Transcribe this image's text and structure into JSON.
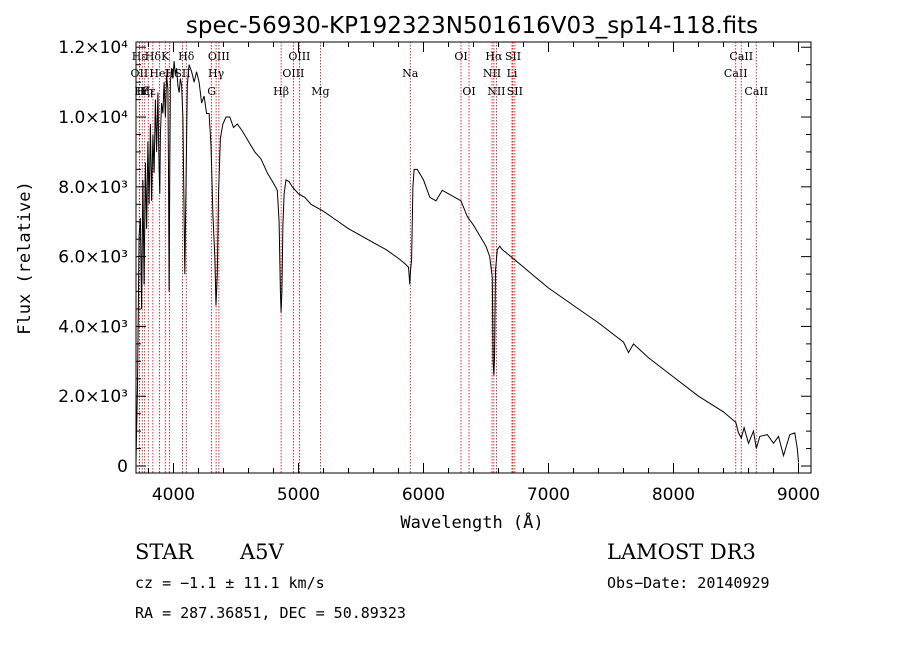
{
  "chart_data": {
    "type": "line",
    "title": "spec-56930-KP192323N501616V03_sp14-118.fits",
    "xlabel": "Wavelength (Å)",
    "ylabel": "Flux (relative)",
    "xlim": [
      3700,
      9100
    ],
    "ylim": [
      -200,
      12150
    ],
    "xticks": [
      {
        "value": 4000,
        "label": "4000"
      },
      {
        "value": 5000,
        "label": "5000"
      },
      {
        "value": 6000,
        "label": "6000"
      },
      {
        "value": 7000,
        "label": "7000"
      },
      {
        "value": 8000,
        "label": "8000"
      },
      {
        "value": 9000,
        "label": "9000"
      }
    ],
    "yticks": [
      {
        "value": 0,
        "label": "0"
      },
      {
        "value": 2000,
        "label": "2.0×10³"
      },
      {
        "value": 4000,
        "label": "4.0×10³"
      },
      {
        "value": 6000,
        "label": "6.0×10³"
      },
      {
        "value": 8000,
        "label": "8.0×10³"
      },
      {
        "value": 10000,
        "label": "1.0×10⁴"
      },
      {
        "value": 12000,
        "label": "1.2×10⁴"
      }
    ],
    "series": [
      {
        "name": "Flux",
        "x": [
          3700,
          3712,
          3725,
          3735,
          3745,
          3755,
          3765,
          3775,
          3785,
          3795,
          3805,
          3815,
          3825,
          3835,
          3845,
          3855,
          3865,
          3875,
          3885,
          3890,
          3895,
          3905,
          3915,
          3925,
          3935,
          3945,
          3955,
          3960,
          3965,
          3970,
          3975,
          3985,
          3995,
          4005,
          4015,
          4025,
          4035,
          4045,
          4055,
          4065,
          4075,
          4090,
          4100,
          4110,
          4125,
          4145,
          4165,
          4185,
          4205,
          4225,
          4245,
          4265,
          4285,
          4300,
          4315,
          4330,
          4340,
          4350,
          4360,
          4375,
          4395,
          4420,
          4450,
          4480,
          4510,
          4550,
          4600,
          4650,
          4700,
          4750,
          4800,
          4830,
          4845,
          4855,
          4861,
          4867,
          4875,
          4885,
          4900,
          4925,
          4950,
          5000,
          5050,
          5100,
          5150,
          5200,
          5300,
          5400,
          5500,
          5600,
          5700,
          5800,
          5850,
          5880,
          5890,
          5896,
          5905,
          5915,
          5925,
          5950,
          6000,
          6050,
          6100,
          6150,
          6200,
          6250,
          6300,
          6350,
          6400,
          6450,
          6500,
          6530,
          6550,
          6557,
          6563,
          6569,
          6576,
          6590,
          6610,
          6630,
          6700,
          6800,
          6900,
          7000,
          7200,
          7400,
          7600,
          7640,
          7680,
          7800,
          8000,
          8200,
          8400,
          8498,
          8520,
          8542,
          8565,
          8600,
          8640,
          8662,
          8690,
          8750,
          8800,
          8840,
          8880,
          8930,
          8970,
          8990,
          9000
        ],
        "values": [
          100,
          2300,
          6600,
          7100,
          4500,
          8200,
          5200,
          8700,
          6800,
          9300,
          7500,
          9800,
          7600,
          9500,
          8400,
          10500,
          9000,
          10700,
          8500,
          7800,
          9500,
          10400,
          10100,
          11000,
          10000,
          11200,
          10800,
          8500,
          5000,
          8600,
          11000,
          11400,
          11100,
          11600,
          11200,
          11400,
          10900,
          10700,
          11100,
          10900,
          10000,
          5500,
          8000,
          10900,
          11500,
          11300,
          11000,
          11300,
          11000,
          10400,
          10600,
          10100,
          10100,
          9200,
          7200,
          6000,
          4600,
          5500,
          7800,
          9400,
          9800,
          10000,
          10000,
          9700,
          9800,
          9600,
          9300,
          9000,
          8800,
          8400,
          8100,
          7900,
          7000,
          5000,
          4400,
          5000,
          6900,
          7800,
          8200,
          8150,
          8000,
          7800,
          7700,
          7500,
          7400,
          7300,
          7050,
          6800,
          6600,
          6400,
          6200,
          5950,
          5800,
          5700,
          5200,
          5600,
          5900,
          8000,
          8500,
          8500,
          8200,
          7700,
          7600,
          7900,
          7800,
          7700,
          7600,
          7150,
          6900,
          6600,
          6300,
          6000,
          5400,
          3000,
          2600,
          3200,
          5600,
          6200,
          6300,
          6200,
          6000,
          5700,
          5400,
          5100,
          4600,
          4100,
          3550,
          3250,
          3500,
          3100,
          2550,
          2000,
          1550,
          1250,
          950,
          800,
          1100,
          650,
          1000,
          500,
          850,
          900,
          650,
          850,
          300,
          900,
          950,
          500,
          100
        ]
      }
    ],
    "line_markers": [
      {
        "label": "Hε",
        "x": 3727,
        "row": 0
      },
      {
        "label": "OII",
        "x": 3727,
        "row": 1
      },
      {
        "label": "Hζ",
        "x": 3750,
        "row": 2
      },
      {
        "label": "Hη",
        "x": 3770,
        "row": 2
      },
      {
        "label": "Hε",
        "x": 3798,
        "row": 2
      },
      {
        "label": "Hδ",
        "x": 3835,
        "row": 0
      },
      {
        "label": "HeI",
        "x": 3889,
        "row": 1
      },
      {
        "label": "K",
        "x": 3934,
        "row": 0
      },
      {
        "label": "H",
        "x": 3969,
        "row": 1
      },
      {
        "label": "SII",
        "x": 4072,
        "row": 1
      },
      {
        "label": "Hδ",
        "x": 4102,
        "row": 0
      },
      {
        "label": "OIII",
        "x": 4363,
        "row": 0
      },
      {
        "label": "Hγ",
        "x": 4341,
        "row": 1
      },
      {
        "label": "G",
        "x": 4305,
        "row": 2
      },
      {
        "label": "Hβ",
        "x": 4861,
        "row": 2
      },
      {
        "label": "OIII",
        "x": 4959,
        "row": 1
      },
      {
        "label": "OIII",
        "x": 5007,
        "row": 0
      },
      {
        "label": "Mg",
        "x": 5175,
        "row": 2
      },
      {
        "label": "Na",
        "x": 5894,
        "row": 1
      },
      {
        "label": "OI",
        "x": 6300,
        "row": 0
      },
      {
        "label": "OI",
        "x": 6364,
        "row": 2
      },
      {
        "label": "NII",
        "x": 6548,
        "row": 1
      },
      {
        "label": "Hα",
        "x": 6563,
        "row": 0
      },
      {
        "label": "NII",
        "x": 6583,
        "row": 2
      },
      {
        "label": "Li",
        "x": 6708,
        "row": 1
      },
      {
        "label": "SII",
        "x": 6716,
        "row": 0
      },
      {
        "label": "SII",
        "x": 6731,
        "row": 2
      },
      {
        "label": "CaII",
        "x": 8498,
        "row": 1
      },
      {
        "label": "CaII",
        "x": 8542,
        "row": 0
      },
      {
        "label": "CaII",
        "x": 8662,
        "row": 2
      }
    ]
  },
  "info": {
    "object_class": "STAR",
    "subclass": "A5V",
    "survey": "LAMOST DR3",
    "cz": "cz = −1.1 ± 11.1 km/s",
    "obs_date": "Obs−Date: 20140929",
    "coords": "RA = 287.36851, DEC =  50.89323"
  }
}
